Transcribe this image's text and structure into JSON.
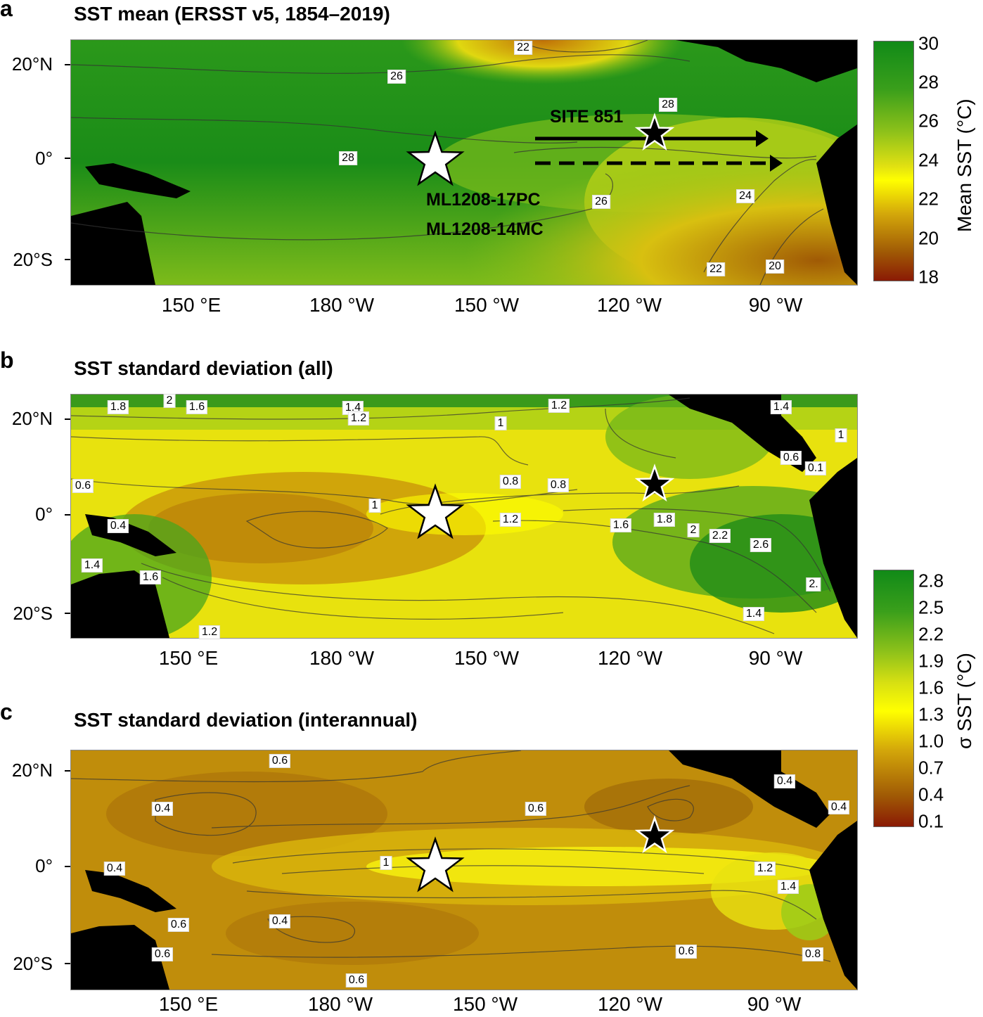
{
  "panels": [
    {
      "letter": "a",
      "title": "SST mean (ERSST v5, 1854–2019)",
      "contour_labels": [
        "22",
        "26",
        "28",
        "28",
        "26",
        "24",
        "22",
        "20"
      ],
      "site_label": "SITE 851",
      "core_labels": [
        "ML1208-17PC",
        "ML1208-14MC"
      ]
    },
    {
      "letter": "b",
      "title": "SST standard deviation (all)",
      "contour_labels": [
        "1.8",
        "2",
        "1.6",
        "1.4",
        "1.2",
        "1",
        "1.2",
        "1.4",
        "0.6",
        "0.6",
        "0.1",
        "1",
        "0.8",
        "0.8",
        "1",
        "1.2",
        "1.6",
        "1.8",
        "2",
        "2.2",
        "2.6",
        "0.4",
        "1.4",
        "1.6",
        "2.",
        "1.4",
        "1.2"
      ]
    },
    {
      "letter": "c",
      "title": "SST standard deviation (interannual)",
      "contour_labels": [
        "0.6",
        "0.4",
        "0.6",
        "0.4",
        "0.4",
        "1",
        "1.2",
        "1.4",
        "0.4",
        "0.6",
        "0.4",
        "0.6",
        "0.6",
        "0.8",
        "0.6"
      ]
    }
  ],
  "axes": {
    "lat_labels": [
      "20°N",
      "0°",
      "20°S"
    ],
    "lon_labels": [
      "150 °E",
      "180 °W",
      "150 °W",
      "120 °W",
      "90 °W"
    ]
  },
  "colorbars": [
    {
      "title": "Mean SST (°C)",
      "ticks": [
        "30",
        "28",
        "26",
        "24",
        "22",
        "20",
        "18"
      ],
      "colors": [
        "#118a18",
        "#4aa51c",
        "#8fc21a",
        "#d8e012",
        "#ffff00",
        "#d4a80a",
        "#a05a05",
        "#8a1a05"
      ]
    },
    {
      "title": "σ SST (°C)",
      "ticks": [
        "2.8",
        "2.5",
        "2.2",
        "1.9",
        "1.6",
        "1.3",
        "1.0",
        "0.7",
        "0.4",
        "0.1"
      ],
      "colors": [
        "#118a18",
        "#4aa51c",
        "#8fc21a",
        "#d8e012",
        "#ffff00",
        "#d4a80a",
        "#a05a05",
        "#8a1a05"
      ]
    }
  ]
}
